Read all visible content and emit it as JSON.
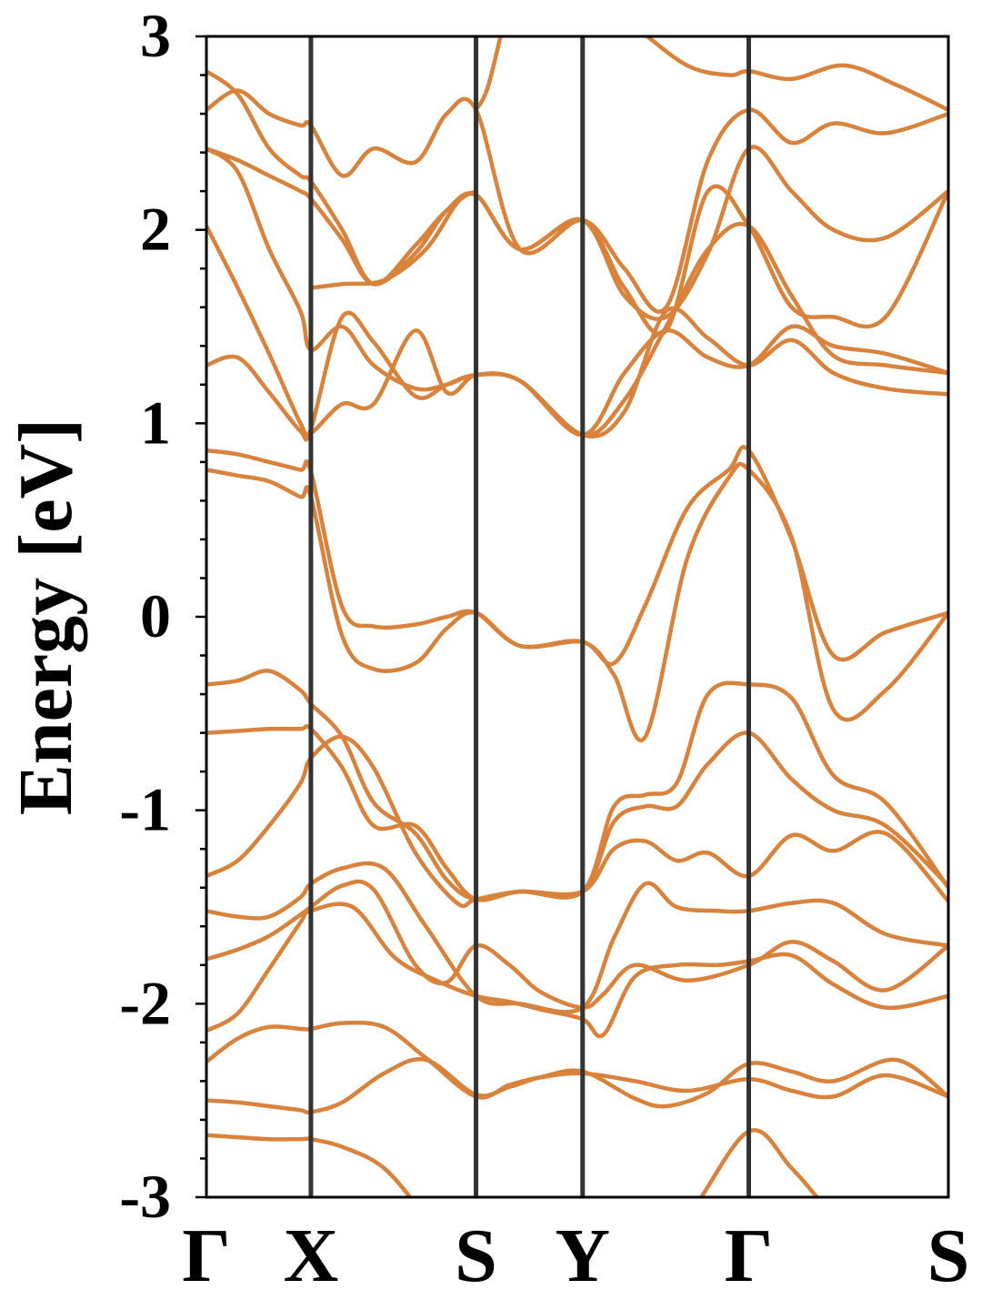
{
  "chart_data": {
    "type": "line",
    "title": "",
    "xlabel": "",
    "ylabel": "Energy [eV]",
    "ylim": [
      -3,
      3
    ],
    "y_ticks": [
      "-3",
      "-2",
      "-1",
      "0",
      "1",
      "2",
      "3"
    ],
    "y_minor_step": 0.2,
    "k_path": [
      "Γ",
      "X",
      "S",
      "Y",
      "Γ",
      "S"
    ],
    "k_positions": [
      0,
      1,
      2.58,
      3.6,
      5.19,
      7.1
    ],
    "grid": false,
    "legend": "none",
    "colors": {
      "band": "#d9823b",
      "kline": "#333333",
      "axis": "#000000"
    },
    "bands": [
      {
        "name": "",
        "x": [
          0,
          0.3,
          0.6,
          0.9,
          1.0,
          1.3,
          1.7,
          2.1,
          2.58,
          2.9,
          3.2,
          3.6,
          4.1,
          4.6,
          5.19,
          5.6,
          6.0,
          6.5,
          7.1
        ],
        "y": [
          -2.68,
          -2.69,
          -2.7,
          -2.7,
          -2.7,
          -2.74,
          -2.85,
          -3.1,
          -3.4,
          -3.4,
          -3.4,
          -3.4,
          -3.3,
          -3.1,
          -2.66,
          -2.85,
          -3.1,
          -3.4,
          -3.4
        ]
      },
      {
        "name": "",
        "x": [
          0,
          0.3,
          0.6,
          0.9,
          1.0,
          1.3,
          1.7,
          2.1,
          2.58,
          2.9,
          3.2,
          3.6,
          4.1,
          4.4,
          4.8,
          5.19,
          5.6,
          6.0,
          6.6,
          7.1
        ],
        "y": [
          -2.5,
          -2.51,
          -2.53,
          -2.55,
          -2.56,
          -2.51,
          -2.36,
          -2.29,
          -2.47,
          -2.43,
          -2.38,
          -2.35,
          -2.49,
          -2.53,
          -2.46,
          -2.31,
          -2.35,
          -2.4,
          -2.29,
          -2.48
        ]
      },
      {
        "name": "",
        "x": [
          0,
          0.3,
          0.6,
          0.9,
          1.0,
          1.3,
          1.7,
          2.1,
          2.58,
          2.9,
          3.2,
          3.6,
          4.1,
          4.6,
          5.19,
          5.6,
          6.0,
          6.5,
          7.1
        ],
        "y": [
          -2.3,
          -2.18,
          -2.12,
          -2.13,
          -2.13,
          -2.1,
          -2.12,
          -2.28,
          -2.48,
          -2.42,
          -2.38,
          -2.36,
          -2.4,
          -2.45,
          -2.39,
          -2.45,
          -2.48,
          -2.37,
          -2.48
        ]
      },
      {
        "name": "",
        "x": [
          0,
          0.3,
          0.6,
          0.9,
          1.0,
          1.4,
          1.8,
          2.2,
          2.58,
          2.9,
          3.2,
          3.6,
          3.8,
          4.1,
          4.5,
          4.9,
          5.19,
          5.6,
          6.0,
          6.5,
          7.1
        ],
        "y": [
          -2.14,
          -2.05,
          -1.82,
          -1.58,
          -1.52,
          -1.5,
          -1.76,
          -1.88,
          -1.96,
          -1.99,
          -2.03,
          -2.08,
          -2.16,
          -1.86,
          -1.8,
          -1.8,
          -1.78,
          -1.75,
          -1.9,
          -2.02,
          -1.96
        ]
      },
      {
        "name": "",
        "x": [
          0,
          0.3,
          0.6,
          0.9,
          1.0,
          1.3,
          1.6,
          2.0,
          2.3,
          2.58,
          2.9,
          3.2,
          3.6,
          3.8,
          4.1,
          4.6,
          5.19,
          5.6,
          6.0,
          6.5,
          7.1
        ],
        "y": [
          -1.77,
          -1.72,
          -1.65,
          -1.54,
          -1.5,
          -1.39,
          -1.41,
          -1.8,
          -1.89,
          -1.7,
          -1.8,
          -1.94,
          -2.02,
          -1.95,
          -1.8,
          -1.88,
          -1.8,
          -1.68,
          -1.78,
          -1.93,
          -1.7
        ]
      },
      {
        "name": "",
        "x": [
          0,
          0.3,
          0.6,
          0.9,
          1.0,
          1.3,
          1.7,
          2.1,
          2.58,
          3.0,
          3.6,
          3.9,
          4.2,
          4.5,
          4.9,
          5.19,
          5.6,
          6.0,
          6.5,
          7.1
        ],
        "y": [
          -1.52,
          -1.55,
          -1.55,
          -1.45,
          -1.38,
          -1.3,
          -1.3,
          -1.6,
          -1.96,
          -2.0,
          -2.02,
          -1.66,
          -1.38,
          -1.5,
          -1.52,
          -1.52,
          -1.48,
          -1.48,
          -1.64,
          -1.7
        ]
      },
      {
        "name": "",
        "x": [
          0,
          0.3,
          0.6,
          0.9,
          1.0,
          1.3,
          1.6,
          2.0,
          2.4,
          2.58,
          3.0,
          3.6,
          3.9,
          4.2,
          4.5,
          4.8,
          5.19,
          5.6,
          6.0,
          6.5,
          7.1
        ],
        "y": [
          -1.34,
          -1.26,
          -1.08,
          -0.86,
          -0.73,
          -0.62,
          -0.78,
          -1.22,
          -1.48,
          -1.46,
          -1.42,
          -1.42,
          -1.2,
          -1.16,
          -1.26,
          -1.22,
          -1.34,
          -1.13,
          -1.21,
          -1.12,
          -1.47
        ]
      },
      {
        "name": "",
        "x": [
          0,
          0.3,
          0.6,
          0.9,
          1.0,
          1.3,
          1.6,
          2.0,
          2.3,
          2.58,
          3.0,
          3.6,
          3.9,
          4.2,
          4.5,
          4.8,
          5.19,
          5.6,
          6.0,
          6.5,
          7.1
        ],
        "y": [
          -0.6,
          -0.59,
          -0.58,
          -0.58,
          -0.58,
          -0.78,
          -1.08,
          -1.08,
          -1.3,
          -1.46,
          -1.42,
          -1.42,
          -1.06,
          -0.98,
          -0.98,
          -0.76,
          -0.6,
          -0.84,
          -1.0,
          -1.08,
          -1.39
        ]
      },
      {
        "name": "",
        "x": [
          0,
          0.3,
          0.6,
          0.9,
          1.0,
          1.3,
          1.6,
          2.0,
          2.3,
          2.58,
          3.0,
          3.6,
          3.9,
          4.2,
          4.5,
          4.8,
          5.19,
          5.6,
          6.0,
          6.5,
          7.1
        ],
        "y": [
          -0.35,
          -0.33,
          -0.28,
          -0.38,
          -0.45,
          -0.62,
          -0.96,
          -1.12,
          -1.36,
          -1.46,
          -1.42,
          -1.42,
          -0.98,
          -0.92,
          -0.86,
          -0.4,
          -0.35,
          -0.42,
          -0.82,
          -0.96,
          -1.4
        ]
      },
      {
        "name": "",
        "x": [
          0,
          0.3,
          0.6,
          0.9,
          1.0,
          1.3,
          1.6,
          2.0,
          2.3,
          2.58,
          3.0,
          3.6,
          3.9,
          4.2,
          4.6,
          5.0,
          5.19,
          5.6,
          6.0,
          6.5,
          7.1
        ],
        "y": [
          0.76,
          0.73,
          0.7,
          0.62,
          0.62,
          -0.1,
          -0.27,
          -0.24,
          -0.06,
          0.02,
          -0.15,
          -0.13,
          -0.3,
          -0.62,
          0.3,
          0.72,
          0.76,
          0.41,
          -0.48,
          -0.38,
          0.02
        ]
      },
      {
        "name": "",
        "x": [
          0,
          0.3,
          0.6,
          0.9,
          1.0,
          1.3,
          1.6,
          2.0,
          2.3,
          2.58,
          3.0,
          3.6,
          3.9,
          4.2,
          4.6,
          5.0,
          5.19,
          5.6,
          6.0,
          6.5,
          7.1
        ],
        "y": [
          0.86,
          0.84,
          0.8,
          0.76,
          0.75,
          0.05,
          -0.05,
          -0.04,
          0.0,
          0.02,
          -0.15,
          -0.13,
          -0.24,
          0.06,
          0.56,
          0.76,
          0.86,
          0.4,
          -0.2,
          -0.08,
          0.02
        ]
      },
      {
        "name": "",
        "x": [
          0,
          0.3,
          0.6,
          0.9,
          1.0,
          1.3,
          1.6,
          2.0,
          2.3,
          2.58,
          3.0,
          3.6,
          4.0,
          4.4,
          4.8,
          5.19,
          5.6,
          6.0,
          6.5,
          7.1
        ],
        "y": [
          2.02,
          1.7,
          1.36,
          1.0,
          0.95,
          1.1,
          1.1,
          1.48,
          1.16,
          1.25,
          1.22,
          0.94,
          1.06,
          1.58,
          1.44,
          1.3,
          1.43,
          1.26,
          1.18,
          1.15
        ]
      },
      {
        "name": "",
        "x": [
          0,
          0.3,
          0.6,
          0.9,
          1.0,
          1.3,
          1.6,
          2.0,
          2.3,
          2.58,
          3.0,
          3.6,
          4.0,
          4.4,
          4.8,
          5.19,
          5.6,
          6.0,
          6.5,
          7.1
        ],
        "y": [
          1.3,
          1.34,
          1.16,
          0.96,
          0.97,
          1.55,
          1.42,
          1.14,
          1.2,
          1.25,
          1.22,
          0.94,
          1.26,
          1.48,
          1.34,
          1.3,
          1.5,
          1.4,
          1.36,
          1.26
        ]
      },
      {
        "name": "",
        "x": [
          0,
          0.3,
          0.6,
          0.9,
          1.0,
          1.3,
          1.6,
          2.0,
          2.3,
          2.58,
          3.0,
          3.6,
          4.0,
          4.4,
          4.8,
          5.19,
          5.6,
          6.0,
          6.5,
          7.1
        ],
        "y": [
          2.42,
          2.3,
          1.9,
          1.58,
          1.38,
          1.5,
          1.3,
          1.18,
          1.2,
          1.25,
          1.22,
          0.94,
          1.12,
          1.5,
          1.9,
          2.02,
          1.66,
          1.35,
          1.3,
          1.26
        ]
      },
      {
        "name": "",
        "x": [
          0,
          0.3,
          0.6,
          0.9,
          1.0,
          1.3,
          1.6,
          2.0,
          2.3,
          2.58,
          3.0,
          3.6,
          4.0,
          4.4,
          4.8,
          5.19,
          5.6,
          6.0,
          6.5,
          7.1
        ],
        "y": [
          2.82,
          2.7,
          2.42,
          2.28,
          2.25,
          2.0,
          1.72,
          1.92,
          2.1,
          2.18,
          1.9,
          2.05,
          1.66,
          1.55,
          1.88,
          2.42,
          2.2,
          2.0,
          1.96,
          2.2
        ]
      },
      {
        "name": "",
        "x": [
          0,
          0.3,
          0.6,
          0.9,
          1.0,
          1.3,
          1.6,
          2.0,
          2.3,
          2.58,
          3.0,
          3.6,
          4.0,
          4.4,
          4.8,
          5.19,
          5.6,
          6.0,
          6.5,
          7.1
        ],
        "y": [
          2.62,
          2.72,
          2.6,
          2.54,
          2.54,
          2.28,
          2.42,
          2.35,
          2.6,
          2.62,
          1.9,
          2.05,
          1.8,
          1.6,
          2.36,
          2.62,
          2.45,
          2.55,
          2.5,
          2.6
        ]
      },
      {
        "name": "",
        "x": [
          0,
          0.3,
          0.6,
          0.9,
          1.0,
          1.3,
          1.6,
          2.0,
          2.3,
          2.58,
          3.0,
          3.6,
          4.0,
          4.4,
          4.8,
          5.19,
          5.6,
          6.0,
          6.5,
          7.1
        ],
        "y": [
          2.42,
          2.36,
          2.28,
          2.2,
          2.16,
          1.95,
          1.72,
          1.88,
          2.1,
          2.18,
          1.9,
          2.05,
          1.7,
          1.48,
          2.2,
          2.02,
          1.6,
          1.55,
          1.55,
          2.2
        ]
      },
      {
        "name": "",
        "x": [
          1.0,
          1.3,
          1.7,
          2.1,
          2.4,
          2.58
        ],
        "y": [
          1.7,
          1.72,
          1.74,
          1.9,
          2.14,
          2.2
        ]
      },
      {
        "name": "",
        "x": [
          2.58,
          2.7,
          2.9
        ],
        "y": [
          2.62,
          2.75,
          3.2
        ]
      },
      {
        "name": "",
        "x": [
          3.7,
          4.1,
          4.6,
          5.0,
          5.19,
          5.6,
          6.1,
          6.6,
          7.1
        ],
        "y": [
          3.2,
          3.05,
          2.85,
          2.8,
          2.82,
          2.78,
          2.85,
          2.75,
          2.62
        ]
      }
    ]
  }
}
